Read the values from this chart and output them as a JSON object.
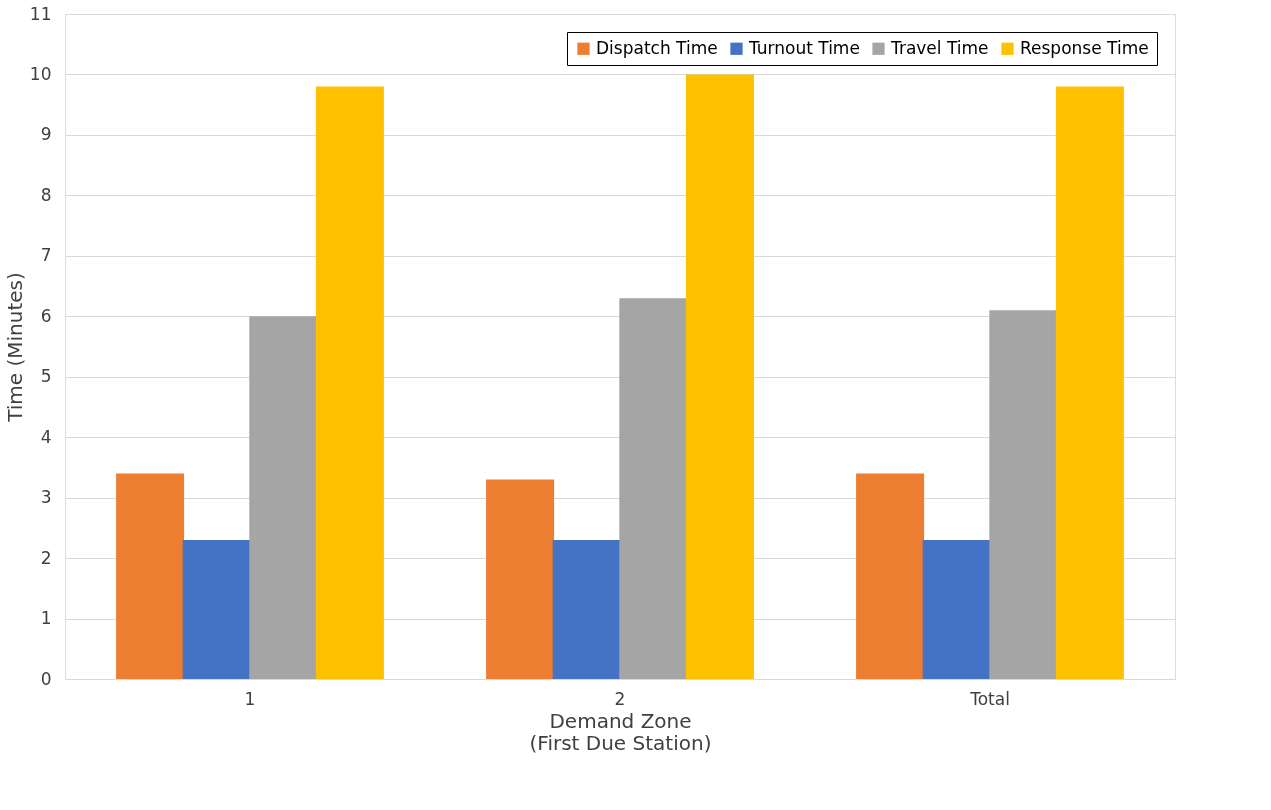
{
  "chart_data": {
    "type": "bar",
    "xlabel": "Demand Zone\n(First Due Station)",
    "ylabel": "Time (Minutes)",
    "categories": [
      "1",
      "2",
      "Total"
    ],
    "series": [
      {
        "name": "Dispatch Time",
        "color": "#ed7d31",
        "values": [
          3.4,
          3.3,
          3.4
        ]
      },
      {
        "name": "Turnout Time",
        "color": "#4472c4",
        "values": [
          2.3,
          2.3,
          2.3
        ]
      },
      {
        "name": "Travel Time",
        "color": "#a5a5a5",
        "values": [
          6.0,
          6.3,
          6.1
        ]
      },
      {
        "name": "Response Time",
        "color": "#ffc000",
        "values": [
          9.8,
          10.0,
          9.8
        ]
      }
    ],
    "ylim": [
      0,
      11
    ],
    "yticks": [
      0,
      1,
      2,
      3,
      4,
      5,
      6,
      7,
      8,
      9,
      10,
      11
    ],
    "grid": "y",
    "legend": "top right"
  }
}
